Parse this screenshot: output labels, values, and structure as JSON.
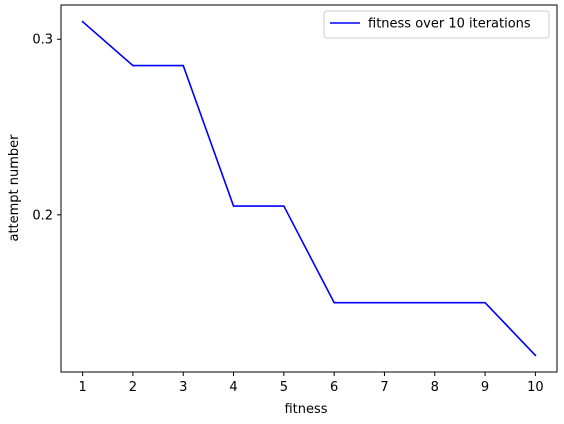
{
  "chart_data": {
    "type": "line",
    "title": "",
    "xlabel": "fitness",
    "ylabel": "attempt number",
    "x": [
      1,
      2,
      3,
      4,
      5,
      6,
      7,
      8,
      9,
      10
    ],
    "series": [
      {
        "name": "fitness over 10 iterations",
        "color": "#0000ff",
        "values": [
          0.31,
          0.285,
          0.285,
          0.205,
          0.205,
          0.15,
          0.15,
          0.15,
          0.15,
          0.12
        ]
      }
    ],
    "xticks": [
      "1",
      "2",
      "3",
      "4",
      "5",
      "6",
      "7",
      "8",
      "9",
      "10"
    ],
    "yticks": [
      0.2,
      0.3
    ],
    "ytick_labels": [
      "0.2",
      "0.3"
    ],
    "xlim": [
      0.57,
      10.43
    ],
    "ylim": [
      0.1105,
      0.3195
    ],
    "grid": false,
    "legend_position": "top-right"
  }
}
